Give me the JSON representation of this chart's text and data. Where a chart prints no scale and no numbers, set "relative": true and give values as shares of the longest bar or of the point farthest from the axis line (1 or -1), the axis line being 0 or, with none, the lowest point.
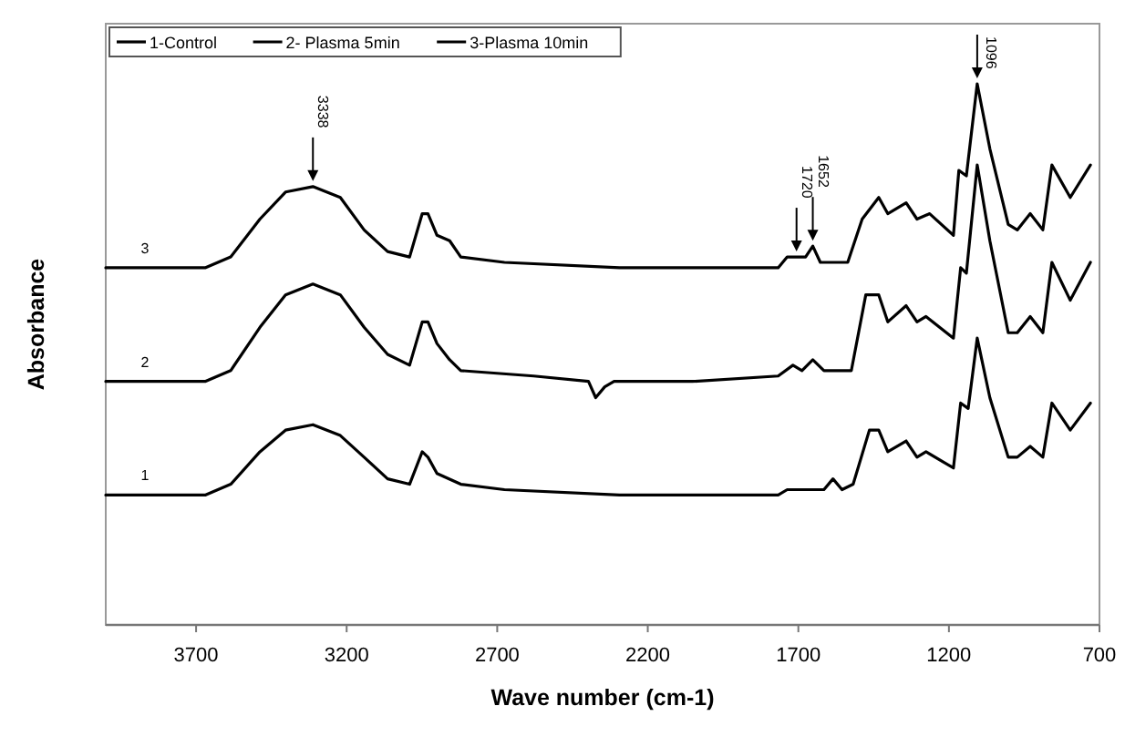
{
  "chart_data": {
    "type": "line",
    "relative": true,
    "xlabel": "Wave number (cm-1)",
    "ylabel": "Absorbance",
    "xlim": [
      4000,
      700
    ],
    "xticks": [
      3700,
      3200,
      2700,
      2200,
      1700,
      1200,
      700
    ],
    "grid": false,
    "legend": "top left",
    "marker": "none",
    "line_style": "solid",
    "tick_labels": "x",
    "series": [
      {
        "name": "1-Control",
        "color": "#000000",
        "x": [
          4000,
          3670,
          3585,
          3488,
          3403,
          3312,
          3221,
          3142,
          3064,
          2991,
          2949,
          2930,
          2900,
          2821,
          2676,
          2294,
          1767,
          1737,
          1676,
          1615,
          1585,
          1555,
          1518,
          1464,
          1433,
          1403,
          1342,
          1306,
          1276,
          1185,
          1161,
          1136,
          1106,
          1064,
          1003,
          973,
          930,
          888,
          858,
          797,
          730
        ],
        "values": [
          0.24,
          0.24,
          0.26,
          0.32,
          0.36,
          0.37,
          0.35,
          0.31,
          0.27,
          0.26,
          0.32,
          0.31,
          0.28,
          0.26,
          0.25,
          0.24,
          0.24,
          0.25,
          0.25,
          0.25,
          0.27,
          0.25,
          0.26,
          0.36,
          0.36,
          0.32,
          0.34,
          0.31,
          0.32,
          0.29,
          0.41,
          0.4,
          0.53,
          0.42,
          0.31,
          0.31,
          0.33,
          0.31,
          0.41,
          0.36,
          0.41
        ]
      },
      {
        "name": "2- Plasma 5min",
        "color": "#000000",
        "x": [
          4000,
          3670,
          3585,
          3488,
          3403,
          3312,
          3221,
          3142,
          3064,
          2991,
          2949,
          2930,
          2900,
          2858,
          2821,
          2579,
          2397,
          2373,
          2343,
          2312,
          2294,
          2052,
          1767,
          1718,
          1688,
          1652,
          1615,
          1524,
          1476,
          1433,
          1403,
          1342,
          1306,
          1276,
          1185,
          1161,
          1142,
          1106,
          1064,
          1003,
          973,
          930,
          888,
          858,
          797,
          730
        ],
        "values": [
          0.45,
          0.45,
          0.47,
          0.55,
          0.61,
          0.63,
          0.61,
          0.55,
          0.5,
          0.48,
          0.56,
          0.56,
          0.52,
          0.49,
          0.47,
          0.46,
          0.45,
          0.42,
          0.44,
          0.45,
          0.45,
          0.45,
          0.46,
          0.48,
          0.47,
          0.49,
          0.47,
          0.47,
          0.61,
          0.61,
          0.56,
          0.59,
          0.56,
          0.57,
          0.53,
          0.66,
          0.65,
          0.85,
          0.71,
          0.54,
          0.54,
          0.57,
          0.54,
          0.67,
          0.6,
          0.67
        ]
      },
      {
        "name": "3-Plasma 10min",
        "color": "#000000",
        "x": [
          4000,
          3670,
          3585,
          3488,
          3403,
          3312,
          3221,
          3142,
          3064,
          2991,
          2949,
          2930,
          2900,
          2858,
          2821,
          2676,
          2294,
          1767,
          1737,
          1706,
          1676,
          1652,
          1627,
          1536,
          1488,
          1433,
          1403,
          1342,
          1306,
          1264,
          1185,
          1167,
          1142,
          1106,
          1064,
          1003,
          973,
          930,
          888,
          858,
          797,
          730
        ],
        "values": [
          0.66,
          0.66,
          0.68,
          0.75,
          0.8,
          0.81,
          0.79,
          0.73,
          0.69,
          0.68,
          0.76,
          0.76,
          0.72,
          0.71,
          0.68,
          0.67,
          0.66,
          0.66,
          0.68,
          0.68,
          0.68,
          0.7,
          0.67,
          0.67,
          0.75,
          0.79,
          0.76,
          0.78,
          0.75,
          0.76,
          0.72,
          0.84,
          0.83,
          1,
          0.88,
          0.74,
          0.73,
          0.76,
          0.73,
          0.85,
          0.79,
          0.85
        ]
      }
    ],
    "annotations": [
      {
        "text": "3338",
        "x": 3312,
        "y": 0.81
      },
      {
        "text": "1720",
        "x": 1706,
        "y": 0.68
      },
      {
        "text": "1652",
        "x": 1652,
        "y": 0.7
      },
      {
        "text": "1096",
        "x": 1106,
        "y": 1
      },
      {
        "text": "3",
        "x": 3870,
        "y": 0.66
      },
      {
        "text": "2",
        "x": 3870,
        "y": 0.45
      },
      {
        "text": "1",
        "x": 3870,
        "y": 0.24
      }
    ]
  }
}
